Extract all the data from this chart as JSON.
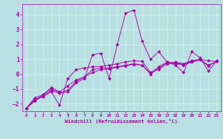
{
  "xlabel": "Windchill (Refroidissement éolien,°C)",
  "xlim": [
    -0.5,
    23.5
  ],
  "ylim": [
    -2.5,
    4.7
  ],
  "xticks": [
    0,
    1,
    2,
    3,
    4,
    5,
    6,
    7,
    8,
    9,
    10,
    11,
    12,
    13,
    14,
    15,
    16,
    17,
    18,
    19,
    20,
    21,
    22,
    23
  ],
  "yticks": [
    -2,
    -1,
    0,
    1,
    2,
    3,
    4
  ],
  "background_color": "#b8e0e0",
  "grid_color": "#d0f0f0",
  "line_color": "#aa00aa",
  "series": [
    {
      "x": [
        0,
        1,
        2,
        3,
        4,
        5,
        6,
        7,
        8,
        9,
        10,
        11,
        12,
        13,
        14,
        15,
        16,
        17,
        18,
        19,
        20,
        21,
        22,
        23
      ],
      "y": [
        -2.3,
        -1.7,
        -1.5,
        -1.2,
        -2.1,
        -0.3,
        0.3,
        0.4,
        0.5,
        0.5,
        0.6,
        0.7,
        0.8,
        0.9,
        0.85,
        0.1,
        0.3,
        0.7,
        0.8,
        0.7,
        0.9,
        1.0,
        0.9,
        0.85
      ]
    },
    {
      "x": [
        0,
        1,
        2,
        3,
        4,
        5,
        6,
        7,
        8,
        9,
        10,
        11,
        12,
        13,
        14,
        15,
        16,
        17,
        18,
        19,
        20,
        21,
        22,
        23
      ],
      "y": [
        -2.3,
        -1.8,
        -1.5,
        -1.1,
        -1.3,
        -1.2,
        -0.6,
        -0.3,
        1.3,
        1.4,
        -0.3,
        2.0,
        4.1,
        4.3,
        2.2,
        1.0,
        1.5,
        0.8,
        0.6,
        0.1,
        1.5,
        1.1,
        0.2,
        0.9
      ]
    },
    {
      "x": [
        0,
        1,
        2,
        3,
        4,
        5,
        6,
        7,
        8,
        9,
        10,
        11,
        12,
        13,
        14,
        15,
        16,
        17,
        18,
        19,
        20,
        21,
        22,
        23
      ],
      "y": [
        -2.3,
        -1.6,
        -1.4,
        -0.9,
        -1.2,
        -0.8,
        -0.4,
        -0.2,
        0.3,
        0.4,
        0.4,
        0.5,
        0.6,
        0.7,
        0.6,
        0.05,
        0.5,
        0.8,
        0.75,
        0.65,
        0.85,
        1.0,
        0.6,
        0.85
      ]
    },
    {
      "x": [
        0,
        1,
        2,
        3,
        4,
        5,
        6,
        7,
        8,
        9,
        10,
        11,
        12,
        13,
        14,
        15,
        16,
        17,
        18,
        19,
        20,
        21,
        22,
        23
      ],
      "y": [
        -2.3,
        -1.8,
        -1.4,
        -1.0,
        -1.25,
        -1.1,
        -0.5,
        -0.2,
        0.1,
        0.3,
        0.35,
        0.45,
        0.55,
        0.65,
        0.6,
        0.0,
        0.4,
        0.75,
        0.7,
        0.6,
        0.8,
        0.95,
        0.55,
        0.85
      ]
    }
  ]
}
